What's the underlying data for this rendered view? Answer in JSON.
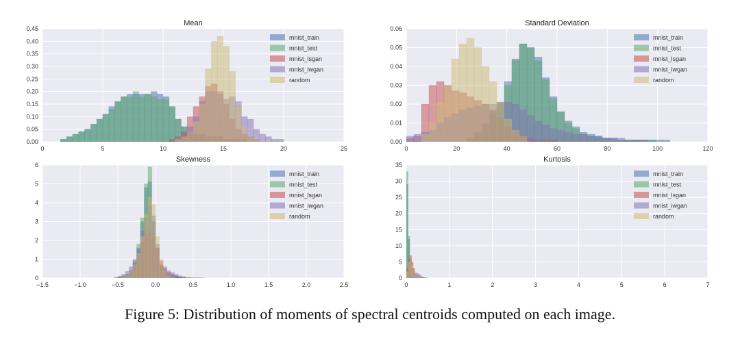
{
  "caption": "Figure 5: Distribution of moments of spectral centroids computed on each image.",
  "colors": {
    "mnist_train": "#4c72b0",
    "mnist_test": "#55a868",
    "mnist_lsgan": "#c44e52",
    "mnist_iwgan": "#8172b2",
    "random": "#ccb974",
    "panel_bg": "#eaeaf2",
    "grid": "#ffffff"
  },
  "chart_data": [
    {
      "id": "mean",
      "type": "histogram",
      "title": "Mean",
      "xlim": [
        0,
        25
      ],
      "ylim": [
        0,
        0.45
      ],
      "xticks": [
        0,
        5,
        10,
        15,
        20,
        25
      ],
      "xtick_labels": [
        "0",
        "5",
        "10",
        "15",
        "20",
        "25"
      ],
      "yticks": [
        0,
        0.05,
        0.1,
        0.15,
        0.2,
        0.25,
        0.3,
        0.35,
        0.4,
        0.45
      ],
      "ytick_labels": [
        "0.00",
        "0.05",
        "0.10",
        "0.15",
        "0.20",
        "0.25",
        "0.30",
        "0.35",
        "0.40",
        "0.45"
      ],
      "legend": "top-right",
      "series": [
        {
          "name": "mnist_train",
          "bin_start": 1.5,
          "bin_width": 0.5,
          "values": [
            0.01,
            0.02,
            0.03,
            0.04,
            0.05,
            0.07,
            0.09,
            0.11,
            0.14,
            0.16,
            0.18,
            0.19,
            0.19,
            0.19,
            0.19,
            0.2,
            0.19,
            0.18,
            0.14,
            0.09,
            0.06,
            0.04,
            0.03,
            0.03,
            0.02,
            0.02,
            0.02,
            0.01,
            0.01,
            0.01,
            0.01
          ]
        },
        {
          "name": "mnist_test",
          "bin_start": 1.5,
          "bin_width": 0.5,
          "values": [
            0.01,
            0.02,
            0.03,
            0.04,
            0.05,
            0.07,
            0.09,
            0.11,
            0.13,
            0.16,
            0.18,
            0.18,
            0.2,
            0.18,
            0.19,
            0.18,
            0.17,
            0.17,
            0.14,
            0.09,
            0.06,
            0.04,
            0.03,
            0.03,
            0.02,
            0.02,
            0.02,
            0.01,
            0.01,
            0.01,
            0.01
          ]
        },
        {
          "name": "mnist_lsgan",
          "bin_start": 10.5,
          "bin_width": 0.5,
          "values": [
            0.01,
            0.02,
            0.04,
            0.1,
            0.14,
            0.18,
            0.22,
            0.23,
            0.2,
            0.15,
            0.09,
            0.05,
            0.03,
            0.02,
            0.01
          ]
        },
        {
          "name": "mnist_iwgan",
          "bin_start": 11.0,
          "bin_width": 0.5,
          "values": [
            0.01,
            0.03,
            0.06,
            0.1,
            0.16,
            0.2,
            0.2,
            0.19,
            0.17,
            0.18,
            0.16,
            0.1,
            0.09,
            0.05,
            0.03,
            0.02,
            0.01,
            0.01
          ]
        },
        {
          "name": "random",
          "bin_start": 11.0,
          "bin_width": 0.5,
          "values": [
            0.01,
            0.02,
            0.04,
            0.08,
            0.15,
            0.29,
            0.4,
            0.42,
            0.38,
            0.28,
            0.14,
            0.06,
            0.02,
            0.01
          ]
        }
      ]
    },
    {
      "id": "std",
      "type": "histogram",
      "title": "Standard Deviation",
      "xlim": [
        0,
        120
      ],
      "ylim": [
        0,
        0.06
      ],
      "xticks": [
        0,
        20,
        40,
        60,
        80,
        100,
        120
      ],
      "xtick_labels": [
        "0",
        "20",
        "40",
        "60",
        "80",
        "100",
        "120"
      ],
      "yticks": [
        0,
        0.01,
        0.02,
        0.03,
        0.04,
        0.05,
        0.06
      ],
      "ytick_labels": [
        "0.00",
        "0.01",
        "0.02",
        "0.03",
        "0.04",
        "0.05",
        "0.06"
      ],
      "legend": "top-right",
      "series": [
        {
          "name": "mnist_train",
          "bin_start": 24,
          "bin_width": 3,
          "values": [
            0.002,
            0.005,
            0.01,
            0.016,
            0.021,
            0.032,
            0.044,
            0.052,
            0.05,
            0.045,
            0.034,
            0.024,
            0.016,
            0.011,
            0.008,
            0.005,
            0.004,
            0.003,
            0.002,
            0.002,
            0.001,
            0.001,
            0.001,
            0.001,
            0.001,
            0.001,
            0.001
          ]
        },
        {
          "name": "mnist_test",
          "bin_start": 24,
          "bin_width": 3,
          "values": [
            0.002,
            0.004,
            0.009,
            0.015,
            0.02,
            0.03,
            0.043,
            0.052,
            0.05,
            0.043,
            0.033,
            0.023,
            0.016,
            0.01,
            0.007,
            0.004,
            0.003,
            0.002,
            0.002,
            0.001,
            0.001,
            0.001,
            0.001,
            0.001,
            0.001
          ]
        },
        {
          "name": "mnist_lsgan",
          "bin_start": 0,
          "bin_width": 3,
          "values": [
            0.002,
            0.003,
            0.02,
            0.03,
            0.032,
            0.03,
            0.027,
            0.026,
            0.024,
            0.022,
            0.02,
            0.017,
            0.013,
            0.008,
            0.005,
            0.003,
            0.002,
            0.001,
            0.001,
            0.001
          ]
        },
        {
          "name": "mnist_iwgan",
          "bin_start": 0,
          "bin_width": 3,
          "values": [
            0.003,
            0.004,
            0.005,
            0.006,
            0.01,
            0.013,
            0.015,
            0.017,
            0.018,
            0.019,
            0.02,
            0.02,
            0.021,
            0.021,
            0.02,
            0.017,
            0.014,
            0.011,
            0.009,
            0.007,
            0.006,
            0.005,
            0.004,
            0.004,
            0.003,
            0.003,
            0.002,
            0.002,
            0.002,
            0.001,
            0.001,
            0.001
          ]
        },
        {
          "name": "random",
          "bin_start": 6,
          "bin_width": 3,
          "values": [
            0.004,
            0.01,
            0.021,
            0.03,
            0.044,
            0.052,
            0.055,
            0.05,
            0.04,
            0.032,
            0.021,
            0.012,
            0.006,
            0.003
          ]
        }
      ]
    },
    {
      "id": "skew",
      "type": "histogram",
      "title": "Skewness",
      "xlim": [
        -1.5,
        2.5
      ],
      "ylim": [
        0,
        6
      ],
      "xticks": [
        -1.5,
        -1.0,
        -0.5,
        0,
        0.5,
        1.0,
        1.5,
        2.0,
        2.5
      ],
      "xtick_labels": [
        "−1.5",
        "−1.0",
        "−0.5",
        "0.0",
        "0.5",
        "1.0",
        "1.5",
        "2.0",
        "2.5"
      ],
      "yticks": [
        0,
        1,
        2,
        3,
        4,
        5,
        6
      ],
      "ytick_labels": [
        "0",
        "1",
        "2",
        "3",
        "4",
        "5",
        "6"
      ],
      "legend": "top-right",
      "series": [
        {
          "name": "mnist_train",
          "bin_start": -0.5,
          "bin_width": 0.05,
          "values": [
            0.05,
            0.1,
            0.2,
            0.4,
            0.8,
            1.6,
            3.0,
            4.8,
            5.1,
            3.3,
            1.6,
            0.7,
            0.35,
            0.2,
            0.12,
            0.08,
            0.05,
            0.03
          ]
        },
        {
          "name": "mnist_test",
          "bin_start": -0.5,
          "bin_width": 0.05,
          "values": [
            0.05,
            0.1,
            0.2,
            0.4,
            0.9,
            1.8,
            3.2,
            5.0,
            5.9,
            3.0,
            1.5,
            0.6,
            0.3,
            0.18,
            0.1,
            0.06,
            0.04,
            0.02
          ]
        },
        {
          "name": "mnist_lsgan",
          "bin_start": -0.4,
          "bin_width": 0.05,
          "values": [
            0.1,
            0.3,
            0.6,
            1.2,
            1.9,
            2.4,
            2.5,
            2.2,
            1.6,
            0.9,
            0.5,
            0.3,
            0.2,
            0.12,
            0.07,
            0.03
          ]
        },
        {
          "name": "mnist_iwgan",
          "bin_start": -0.55,
          "bin_width": 0.05,
          "values": [
            0.05,
            0.1,
            0.2,
            0.35,
            0.6,
            1.0,
            1.5,
            2.5,
            3.2,
            3.8,
            3.0,
            1.8,
            0.7,
            0.6,
            0.4,
            0.3,
            0.2,
            0.12,
            0.08,
            0.05,
            0.03,
            0.02,
            0.02,
            0.01
          ]
        },
        {
          "name": "random",
          "bin_start": -0.45,
          "bin_width": 0.05,
          "values": [
            0.05,
            0.15,
            0.35,
            0.7,
            1.3,
            2.2,
            3.4,
            4.3,
            3.9,
            2.2,
            1.0,
            0.4,
            0.15,
            0.05
          ]
        }
      ]
    },
    {
      "id": "kurt",
      "type": "histogram",
      "title": "Kurtosis",
      "xlim": [
        0,
        7
      ],
      "ylim": [
        0,
        35
      ],
      "xticks": [
        0,
        1,
        2,
        3,
        4,
        5,
        6,
        7
      ],
      "xtick_labels": [
        "0",
        "1",
        "2",
        "3",
        "4",
        "5",
        "6",
        "7"
      ],
      "yticks": [
        0,
        5,
        10,
        15,
        20,
        25,
        30,
        35
      ],
      "ytick_labels": [
        "0",
        "5",
        "10",
        "15",
        "20",
        "25",
        "30",
        "35"
      ],
      "legend": "top-right",
      "series": [
        {
          "name": "mnist_train",
          "bin_start": 0,
          "bin_width": 0.04,
          "values": [
            29,
            12,
            6,
            3,
            1.5,
            0.8,
            0.5,
            0.3,
            0.2,
            0.1,
            0.05
          ]
        },
        {
          "name": "mnist_test",
          "bin_start": 0,
          "bin_width": 0.04,
          "values": [
            33,
            13,
            6,
            3,
            1.5,
            0.8,
            0.5,
            0.3,
            0.2,
            0.1,
            0.05
          ]
        },
        {
          "name": "mnist_lsgan",
          "bin_start": 0,
          "bin_width": 0.04,
          "values": [
            3,
            6,
            7,
            5,
            3,
            1.5,
            0.8,
            0.4,
            0.2,
            0.1
          ]
        },
        {
          "name": "mnist_iwgan",
          "bin_start": 0,
          "bin_width": 0.04,
          "values": [
            1,
            2,
            3,
            3,
            2,
            1.6,
            1.4,
            1.2,
            0.7,
            0.4,
            0.2,
            0.1
          ]
        },
        {
          "name": "random",
          "bin_start": 0,
          "bin_width": 0.04,
          "values": [
            2,
            5,
            6,
            4,
            2.5,
            1.5,
            0.6,
            0.3,
            0.1
          ]
        }
      ]
    }
  ]
}
